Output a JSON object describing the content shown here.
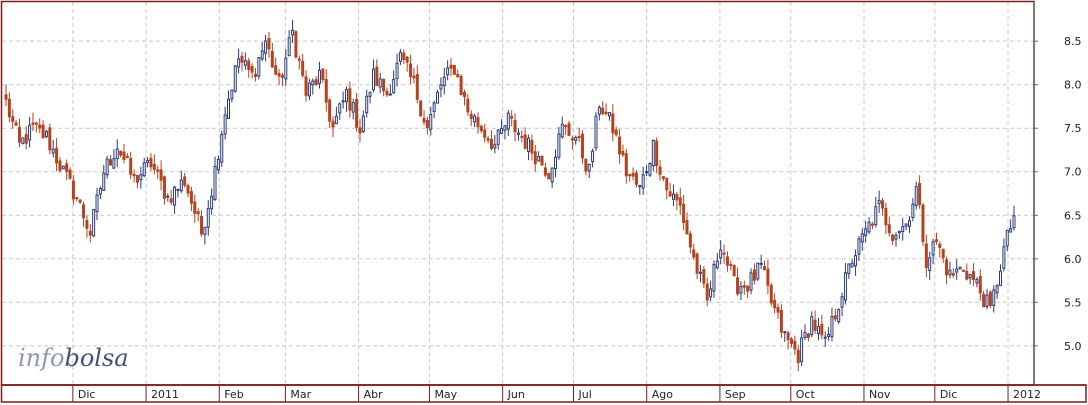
{
  "watermark": {
    "part1": "info",
    "part2": "bolsa"
  },
  "colors": {
    "up": "#2b3a7a",
    "down": "#b5431e",
    "frame": "#7a1e1e",
    "grid": "#c9c9c9",
    "plot_bg": "#ffffff"
  },
  "chart_data": {
    "type": "candlestick",
    "title": "",
    "xlabel": "",
    "ylabel": "",
    "ylim": [
      4.55,
      8.95
    ],
    "y_ticks": [
      5.0,
      5.5,
      6.0,
      6.5,
      7.0,
      7.5,
      8.0,
      8.5
    ],
    "y_tick_labels": [
      "5.0",
      "5.5",
      "6.0",
      "6.5",
      "7.0",
      "7.5",
      "8.0",
      "8.5"
    ],
    "grid": true,
    "x_ticks": [
      {
        "label": "Dic",
        "date": "2010-12-01"
      },
      {
        "label": "2011",
        "date": "2011-01-01"
      },
      {
        "label": "Feb",
        "date": "2011-02-01"
      },
      {
        "label": "Mar",
        "date": "2011-03-01"
      },
      {
        "label": "Abr",
        "date": "2011-04-01"
      },
      {
        "label": "May",
        "date": "2011-05-01"
      },
      {
        "label": "Jun",
        "date": "2011-06-01"
      },
      {
        "label": "Jul",
        "date": "2011-07-01"
      },
      {
        "label": "Ago",
        "date": "2011-08-01"
      },
      {
        "label": "Sep",
        "date": "2011-09-01"
      },
      {
        "label": "Oct",
        "date": "2011-10-01"
      },
      {
        "label": "Nov",
        "date": "2011-11-01"
      },
      {
        "label": "Dic",
        "date": "2011-12-01"
      },
      {
        "label": "2012",
        "date": "2012-01-01"
      }
    ],
    "series": [
      {
        "name": "",
        "trading_days": 300,
        "close_anchors": [
          [
            0,
            7.8
          ],
          [
            4,
            7.3
          ],
          [
            8,
            7.5
          ],
          [
            12,
            7.4
          ],
          [
            17,
            7.0
          ],
          [
            21,
            6.7
          ],
          [
            25,
            6.3
          ],
          [
            29,
            7.0
          ],
          [
            33,
            7.3
          ],
          [
            38,
            6.9
          ],
          [
            43,
            7.1
          ],
          [
            48,
            6.7
          ],
          [
            53,
            6.9
          ],
          [
            58,
            6.3
          ],
          [
            61,
            6.8
          ],
          [
            65,
            7.7
          ],
          [
            69,
            8.3
          ],
          [
            73,
            8.1
          ],
          [
            77,
            8.5
          ],
          [
            81,
            8.0
          ],
          [
            85,
            8.6
          ],
          [
            89,
            7.9
          ],
          [
            93,
            8.1
          ],
          [
            97,
            7.5
          ],
          [
            101,
            7.9
          ],
          [
            105,
            7.5
          ],
          [
            109,
            8.1
          ],
          [
            113,
            7.9
          ],
          [
            117,
            8.3
          ],
          [
            121,
            8.0
          ],
          [
            125,
            7.5
          ],
          [
            129,
            8.0
          ],
          [
            133,
            8.2
          ],
          [
            137,
            7.7
          ],
          [
            141,
            7.5
          ],
          [
            145,
            7.3
          ],
          [
            149,
            7.6
          ],
          [
            153,
            7.4
          ],
          [
            157,
            7.2
          ],
          [
            161,
            7.0
          ],
          [
            165,
            7.5
          ],
          [
            169,
            7.4
          ],
          [
            173,
            7.0
          ],
          [
            176,
            7.8
          ],
          [
            180,
            7.5
          ],
          [
            184,
            7.0
          ],
          [
            188,
            6.8
          ],
          [
            192,
            7.3
          ],
          [
            196,
            6.8
          ],
          [
            200,
            6.6
          ],
          [
            204,
            6.0
          ],
          [
            208,
            5.5
          ],
          [
            212,
            6.2
          ],
          [
            216,
            5.7
          ],
          [
            220,
            5.7
          ],
          [
            224,
            5.9
          ],
          [
            227,
            5.5
          ],
          [
            231,
            5.1
          ],
          [
            235,
            4.9
          ],
          [
            239,
            5.3
          ],
          [
            243,
            5.0
          ],
          [
            247,
            5.5
          ],
          [
            251,
            6.0
          ],
          [
            255,
            6.3
          ],
          [
            259,
            6.6
          ],
          [
            263,
            6.3
          ],
          [
            267,
            6.4
          ],
          [
            270,
            6.8
          ],
          [
            273,
            6.0
          ],
          [
            276,
            6.2
          ],
          [
            280,
            5.8
          ],
          [
            284,
            5.9
          ],
          [
            288,
            5.7
          ],
          [
            292,
            5.4
          ],
          [
            296,
            6.1
          ],
          [
            299,
            6.5
          ]
        ]
      }
    ]
  }
}
